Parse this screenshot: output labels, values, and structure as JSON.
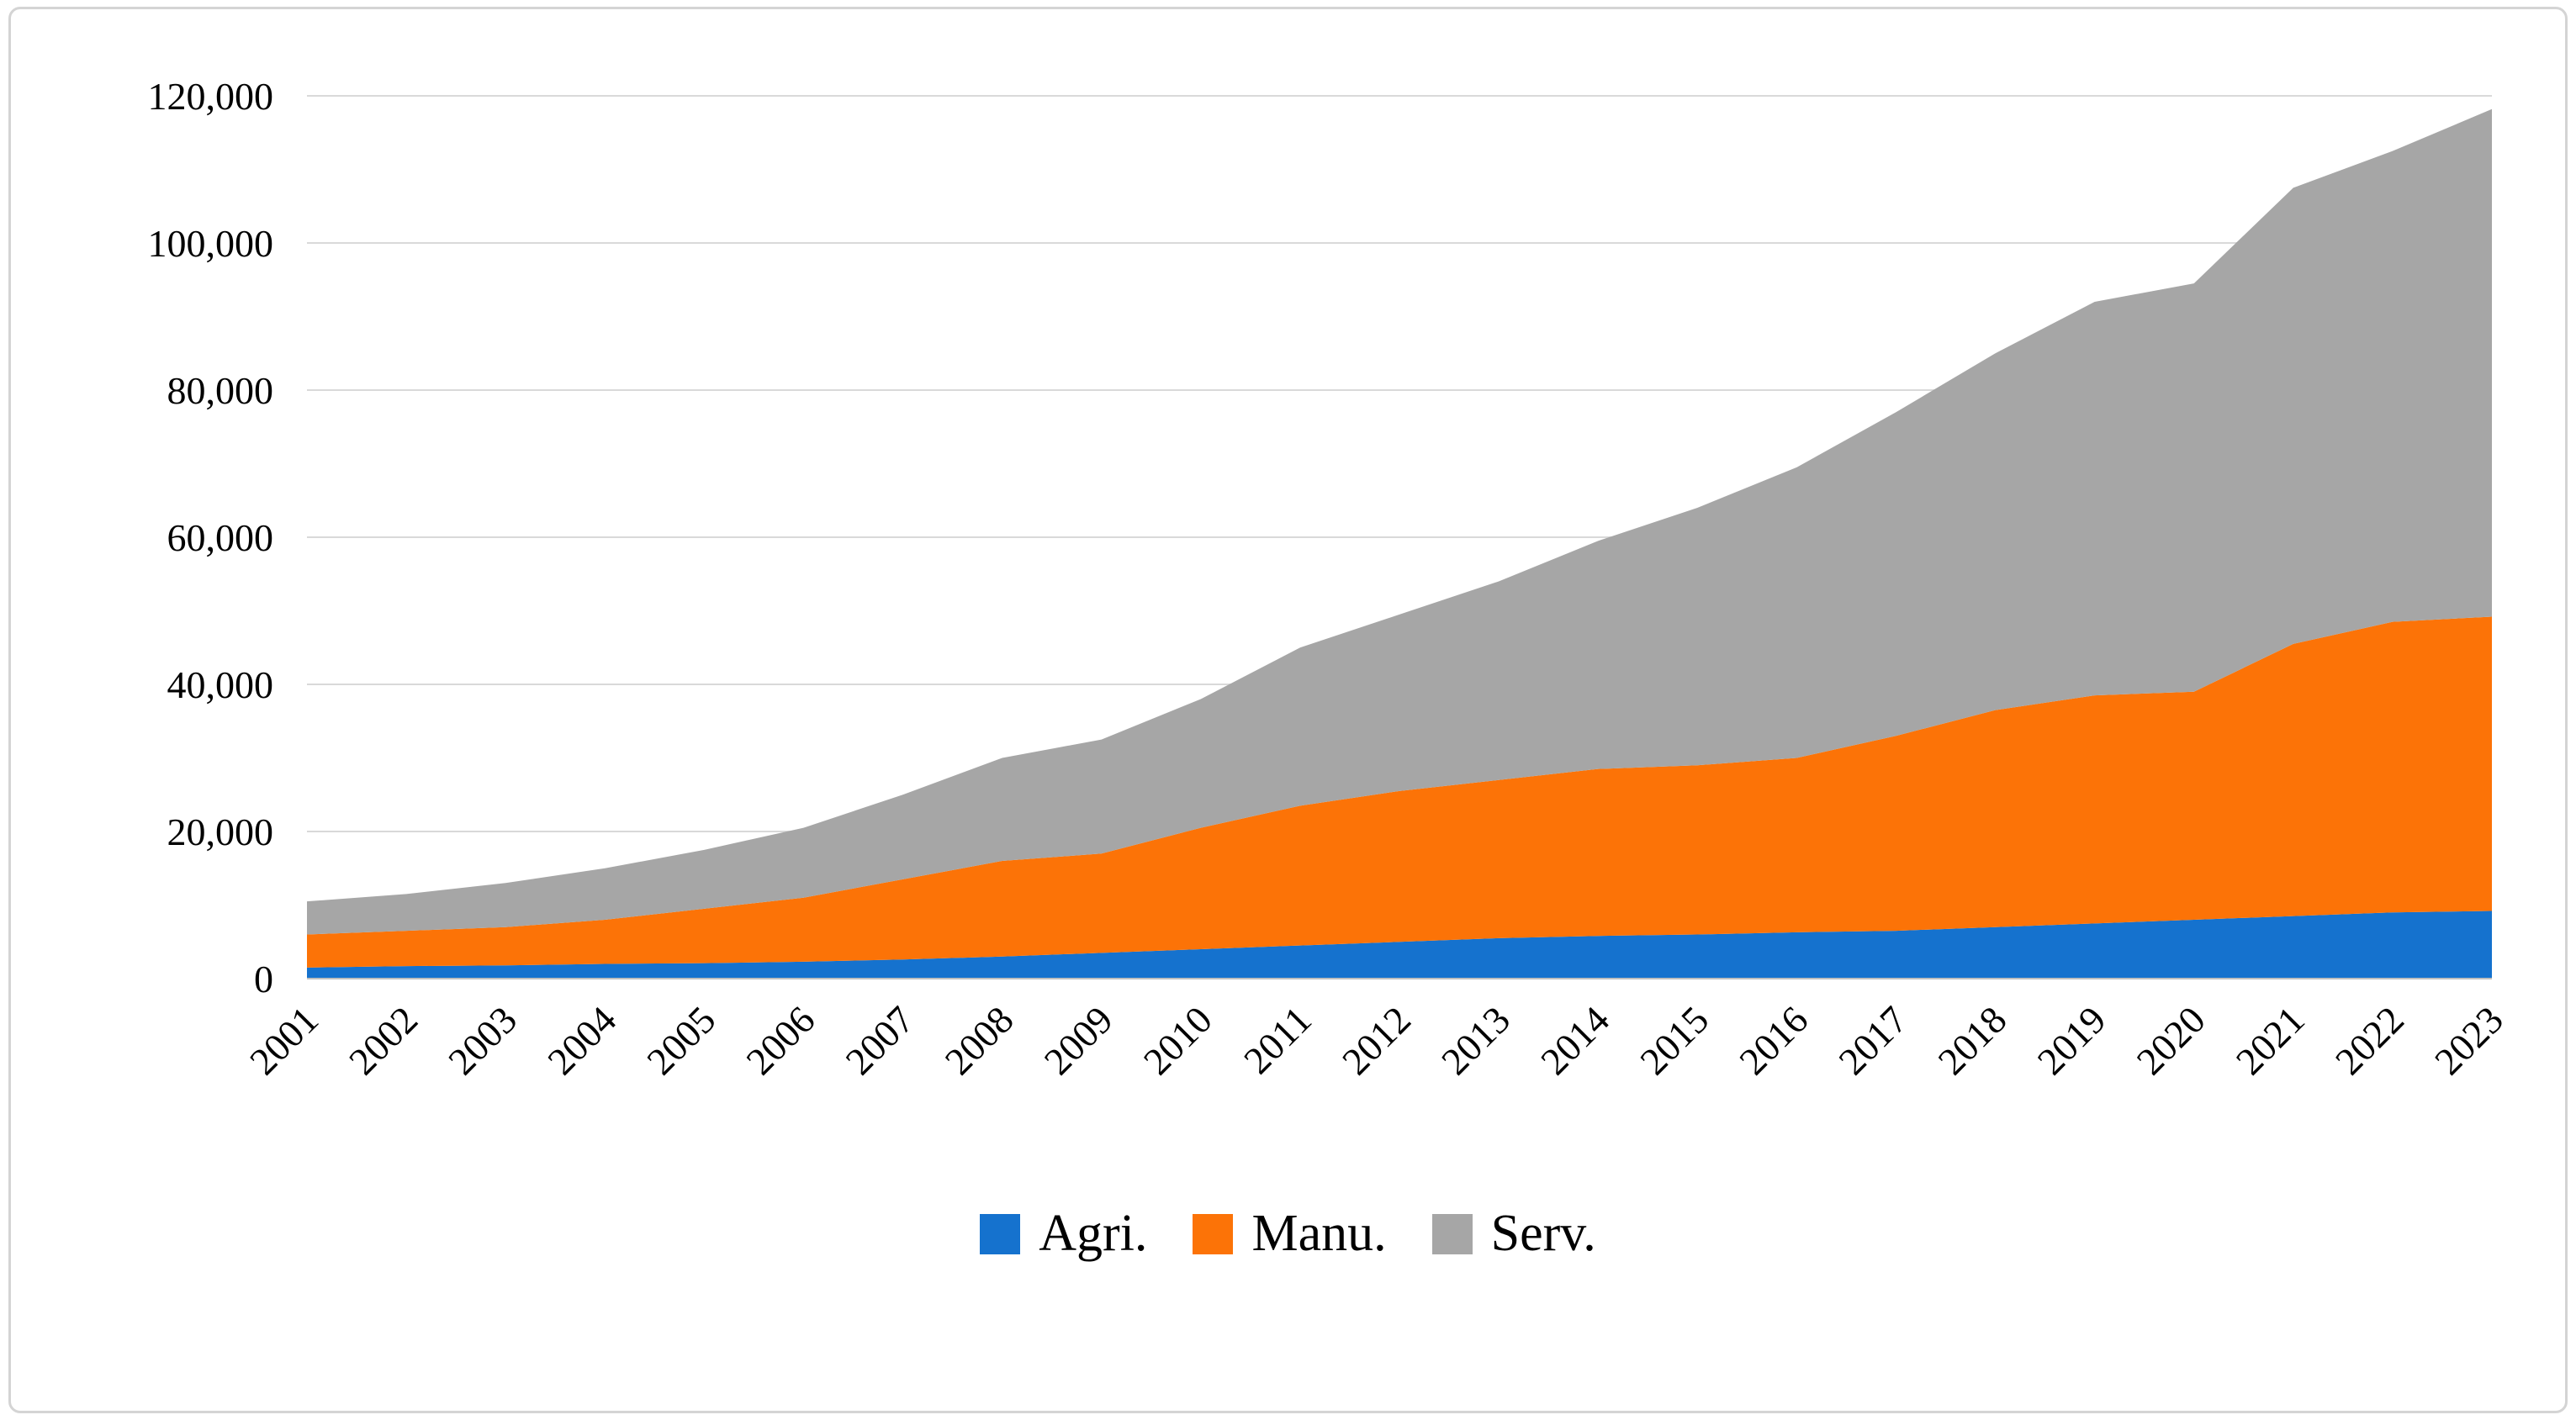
{
  "chart_data": {
    "type": "area",
    "stacked": true,
    "title": "",
    "xlabel": "",
    "ylabel": "",
    "ylim": [
      0,
      120000
    ],
    "ytick_interval": 20000,
    "yticks": [
      "0",
      "20,000",
      "40,000",
      "60,000",
      "80,000",
      "100,000",
      "120,000"
    ],
    "grid": true,
    "grid_color": "#d9d9d9",
    "axis_color": "#bfbfbf",
    "legend_position": "bottom",
    "x": [
      "2001",
      "2002",
      "2003",
      "2004",
      "2005",
      "2006",
      "2007",
      "2008",
      "2009",
      "2010",
      "2011",
      "2012",
      "2013",
      "2014",
      "2015",
      "2016",
      "2017",
      "2018",
      "2019",
      "2020",
      "2021",
      "2022",
      "2023"
    ],
    "series": [
      {
        "name": "Agri.",
        "color": "#1572ce",
        "values": [
          1500,
          1700,
          1800,
          2000,
          2100,
          2300,
          2600,
          3000,
          3500,
          4000,
          4500,
          5000,
          5500,
          5800,
          6000,
          6300,
          6500,
          7000,
          7500,
          8000,
          8500,
          9000,
          9200
        ]
      },
      {
        "name": "Manu.",
        "color": "#fc7307",
        "values": [
          4500,
          4800,
          5200,
          6000,
          7400,
          8700,
          10900,
          13000,
          13500,
          16500,
          19000,
          20500,
          21500,
          22700,
          23000,
          23700,
          26500,
          29500,
          31000,
          31000,
          37000,
          39500,
          40000
        ]
      },
      {
        "name": "Serv.",
        "color": "#a6a6a6",
        "values": [
          4500,
          5000,
          6000,
          7000,
          8000,
          9500,
          11500,
          14000,
          15500,
          17500,
          21500,
          24000,
          27000,
          31000,
          35000,
          39500,
          44000,
          48500,
          53500,
          55500,
          62000,
          64000,
          69000
        ]
      }
    ]
  }
}
